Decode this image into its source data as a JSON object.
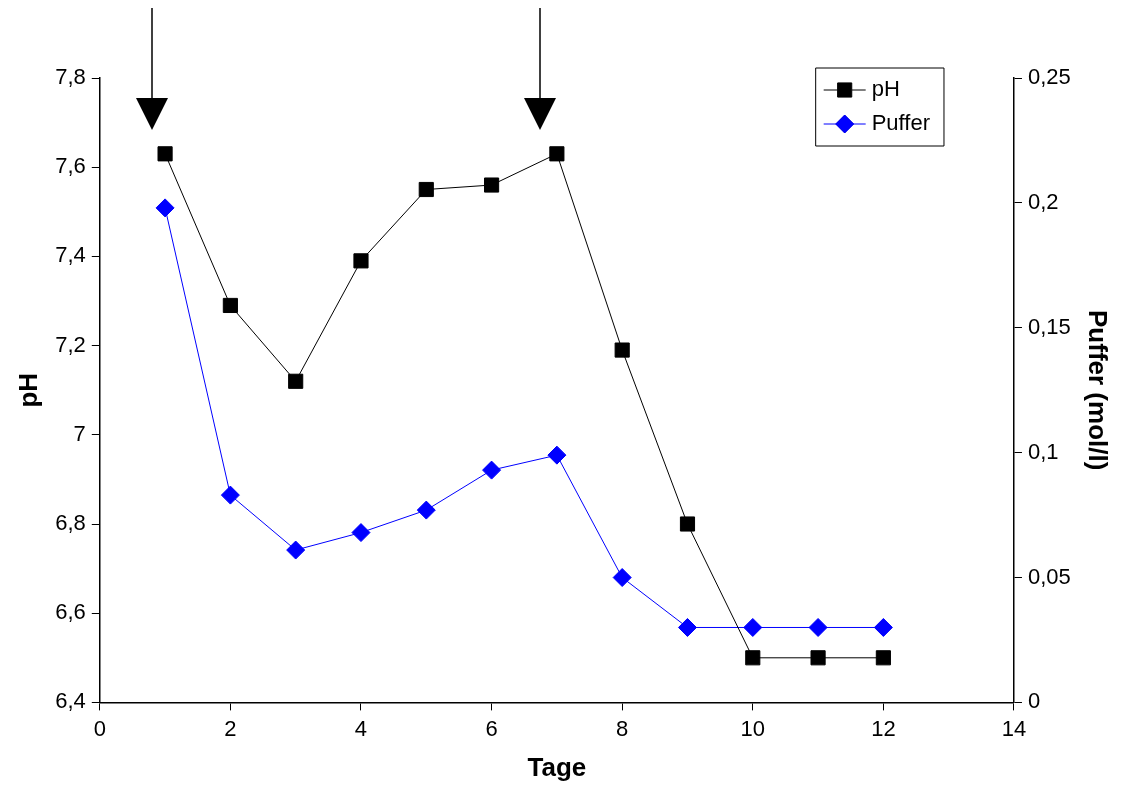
{
  "chart_data": {
    "type": "line",
    "xlabel": "Tage",
    "ylabel": "pH",
    "y2label": "Puffer (mol/l)",
    "x": [
      1,
      2,
      3,
      4,
      5,
      6,
      7,
      8,
      9,
      10,
      11,
      12
    ],
    "series": [
      {
        "name": "pH",
        "color": "#000000",
        "marker": "square",
        "values": [
          7.63,
          7.29,
          7.12,
          7.39,
          7.55,
          7.56,
          7.63,
          7.19,
          6.8,
          6.5,
          6.5,
          6.5
        ]
      },
      {
        "name": "Puffer",
        "color": "#0000ff",
        "marker": "diamond",
        "axis": "y2",
        "values": [
          0.198,
          0.083,
          0.061,
          0.068,
          0.077,
          0.093,
          0.099,
          0.05,
          0.03,
          0.03,
          0.03,
          0.03
        ]
      }
    ],
    "xlim": [
      0,
      14
    ],
    "xticks": [
      0,
      2,
      4,
      6,
      8,
      10,
      12,
      14
    ],
    "ylim": [
      6.4,
      7.8
    ],
    "yticks": [
      {
        "value": 6.4,
        "label": "6,4"
      },
      {
        "value": 6.6,
        "label": "6,6"
      },
      {
        "value": 6.8,
        "label": "6,8"
      },
      7,
      {
        "value": 7.2,
        "label": "7,2"
      },
      {
        "value": 7.4,
        "label": "7,4"
      },
      {
        "value": 7.6,
        "label": "7,6"
      },
      {
        "value": 7.8,
        "label": "7,8"
      }
    ],
    "y2lim": [
      0,
      0.25
    ],
    "y2ticks": [
      0,
      {
        "value": 0.05,
        "label": "0,05"
      },
      {
        "value": 0.1,
        "label": "0,1"
      },
      {
        "value": 0.15,
        "label": "0,15"
      },
      {
        "value": 0.2,
        "label": "0,2"
      },
      {
        "value": 0.25,
        "label": "0,25"
      }
    ],
    "grid": false,
    "legend": "top right",
    "line_style": "solid"
  }
}
